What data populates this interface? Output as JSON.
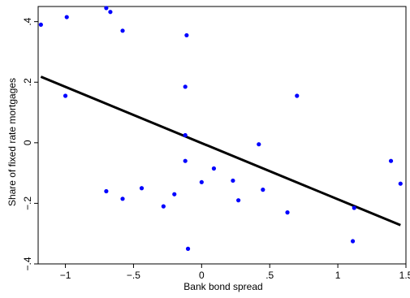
{
  "chart_data": {
    "type": "scatter",
    "title": "",
    "xlabel": "Bank bond spread",
    "ylabel": "Share of fixed rate mortgages",
    "xlim": [
      -1.2,
      1.5
    ],
    "ylim": [
      -0.4,
      0.45
    ],
    "xticks": [
      -1,
      -0.5,
      0,
      0.5,
      1,
      1.5
    ],
    "xtick_labels": [
      "−1",
      "−.5",
      "0",
      ".5",
      "1",
      "1.5"
    ],
    "yticks": [
      -0.4,
      -0.2,
      0,
      0.2,
      0.4
    ],
    "ytick_labels": [
      "−.4",
      "−.2",
      "0",
      ".2",
      ".4"
    ],
    "grid": false,
    "point_color": "#0000ff",
    "line_color": "#000000",
    "points": [
      {
        "x": -1.18,
        "y": 0.39
      },
      {
        "x": -0.99,
        "y": 0.415
      },
      {
        "x": -1.0,
        "y": 0.155
      },
      {
        "x": -0.7,
        "y": 0.445
      },
      {
        "x": -0.67,
        "y": 0.432
      },
      {
        "x": -0.58,
        "y": 0.37
      },
      {
        "x": -0.11,
        "y": 0.355
      },
      {
        "x": -0.12,
        "y": 0.185
      },
      {
        "x": -0.12,
        "y": 0.025
      },
      {
        "x": -0.12,
        "y": -0.06
      },
      {
        "x": -0.7,
        "y": -0.16
      },
      {
        "x": -0.58,
        "y": -0.185
      },
      {
        "x": -0.44,
        "y": -0.15
      },
      {
        "x": -0.28,
        "y": -0.21
      },
      {
        "x": -0.2,
        "y": -0.17
      },
      {
        "x": -0.1,
        "y": -0.35
      },
      {
        "x": 0.0,
        "y": -0.13
      },
      {
        "x": 0.09,
        "y": -0.085
      },
      {
        "x": 0.23,
        "y": -0.125
      },
      {
        "x": 0.27,
        "y": -0.19
      },
      {
        "x": 0.42,
        "y": -0.005
      },
      {
        "x": 0.45,
        "y": -0.155
      },
      {
        "x": 0.63,
        "y": -0.23
      },
      {
        "x": 0.7,
        "y": 0.155
      },
      {
        "x": 1.11,
        "y": -0.325
      },
      {
        "x": 1.12,
        "y": -0.215
      },
      {
        "x": 1.39,
        "y": -0.06
      },
      {
        "x": 1.46,
        "y": -0.135
      }
    ],
    "fit_line": {
      "x": [
        -1.18,
        1.46
      ],
      "y": [
        0.218,
        -0.272
      ]
    }
  }
}
